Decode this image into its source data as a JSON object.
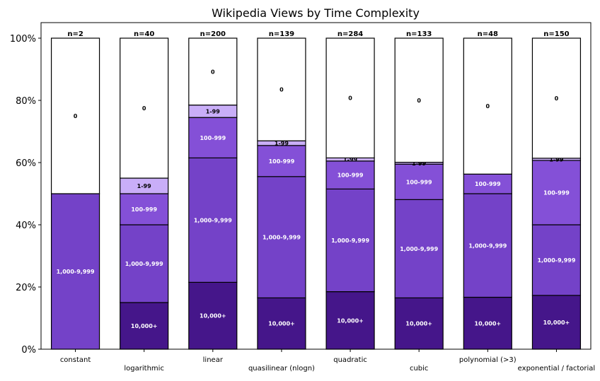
{
  "chart_data": {
    "type": "bar",
    "stacked": true,
    "percent": true,
    "title": "Wikipedia Views by Time Complexity",
    "xlabel": "",
    "ylabel": "",
    "ylim": [
      0,
      105
    ],
    "yticks": [
      "0%",
      "20%",
      "40%",
      "60%",
      "80%",
      "100%"
    ],
    "ytick_values": [
      0,
      20,
      40,
      60,
      80,
      100
    ],
    "grid": false,
    "legend": "none",
    "categories": [
      "constant",
      "logarithmic",
      "linear",
      "quasilinear (nlogn)",
      "quadratic",
      "cubic",
      "polynomial (>3)",
      "exponential / factorial"
    ],
    "counts": [
      "n=2",
      "n=40",
      "n=200",
      "n=139",
      "n=284",
      "n=133",
      "n=48",
      "n=150"
    ],
    "series": [
      {
        "name": "10,000+",
        "color": "#45168a",
        "label_color": "#ffffff",
        "values": [
          0,
          15,
          21.5,
          16.5,
          18.5,
          16.5,
          16.7,
          17.3
        ]
      },
      {
        "name": "1,000-9,999",
        "color": "#7442c8",
        "label_color": "#ffffff",
        "values": [
          50,
          25,
          40,
          39,
          33,
          31.6,
          33.3,
          22.7
        ]
      },
      {
        "name": "100-999",
        "color": "#8450d7",
        "label_color": "#ffffff",
        "values": [
          0,
          10,
          13,
          10,
          9,
          11.4,
          6.3,
          20.7
        ]
      },
      {
        "name": "1-99",
        "color": "#c9aef8",
        "label_color": "#000000",
        "values": [
          0,
          5,
          4,
          1.5,
          1,
          0.6,
          0,
          0.7
        ]
      },
      {
        "name": "0",
        "color": "#ffffff",
        "label_color": "#000000",
        "values": [
          50,
          45,
          21.5,
          33,
          38.5,
          39.9,
          43.7,
          38.6
        ]
      }
    ]
  }
}
